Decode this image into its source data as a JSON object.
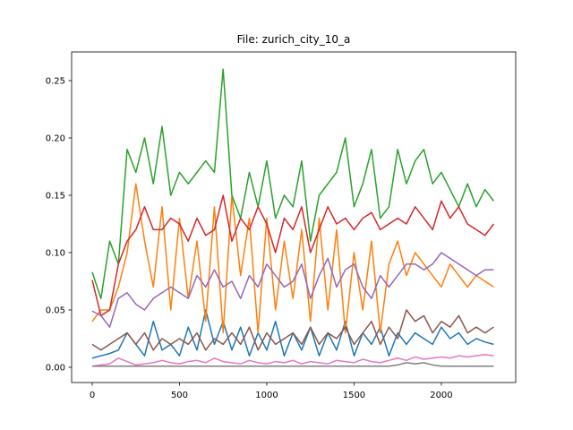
{
  "chart_data": {
    "type": "line",
    "title": "File: zurich_city_10_a",
    "x": [
      0,
      50,
      100,
      150,
      200,
      250,
      300,
      350,
      400,
      450,
      500,
      550,
      600,
      650,
      700,
      750,
      800,
      850,
      900,
      950,
      1000,
      1050,
      1100,
      1150,
      1200,
      1250,
      1300,
      1350,
      1400,
      1450,
      1500,
      1550,
      1600,
      1650,
      1700,
      1750,
      1800,
      1850,
      1900,
      1950,
      2000,
      2050,
      2100,
      2150,
      2200,
      2250,
      2300
    ],
    "xlim": [
      -118,
      2426
    ],
    "xticks": [
      0,
      500,
      1000,
      1500,
      2000
    ],
    "ylim": [
      -0.0133,
      0.275
    ],
    "yticks": [
      {
        "value": 0,
        "label": "0.00"
      },
      {
        "value": 0.05,
        "label": "0.05"
      },
      {
        "value": 0.1,
        "label": "0.10"
      },
      {
        "value": 0.15,
        "label": "0.15"
      },
      {
        "value": 0.2,
        "label": "0.20"
      },
      {
        "value": 0.25,
        "label": "0.25"
      }
    ],
    "series": [
      {
        "color": "#1f77b4",
        "values": [
          0.008,
          0.01,
          0.012,
          0.015,
          0.03,
          0.02,
          0.01,
          0.04,
          0.015,
          0.02,
          0.01,
          0.035,
          0.015,
          0.05,
          0.02,
          0.04,
          0.015,
          0.035,
          0.01,
          0.03,
          0.015,
          0.04,
          0.01,
          0.03,
          0.015,
          0.035,
          0.01,
          0.03,
          0.015,
          0.04,
          0.01,
          0.03,
          0.02,
          0.035,
          0.01,
          0.03,
          0.02,
          0.03,
          0.025,
          0.02,
          0.035,
          0.025,
          0.03,
          0.02,
          0.025,
          0.022,
          0.02
        ]
      },
      {
        "color": "#ff7f0e",
        "values": [
          0.04,
          0.05,
          0.05,
          0.07,
          0.1,
          0.16,
          0.11,
          0.07,
          0.14,
          0.05,
          0.13,
          0.06,
          0.11,
          0.04,
          0.14,
          0.03,
          0.15,
          0.08,
          0.13,
          0.03,
          0.13,
          0.05,
          0.11,
          0.06,
          0.12,
          0.04,
          0.13,
          0.05,
          0.12,
          0.03,
          0.1,
          0.05,
          0.11,
          0.03,
          0.09,
          0.11,
          0.08,
          0.1,
          0.09,
          0.08,
          0.07,
          0.09,
          0.08,
          0.07,
          0.08,
          0.075,
          0.07
        ]
      },
      {
        "color": "#2ca02c",
        "values": [
          0.083,
          0.06,
          0.11,
          0.09,
          0.19,
          0.17,
          0.2,
          0.16,
          0.21,
          0.15,
          0.17,
          0.16,
          0.17,
          0.18,
          0.17,
          0.26,
          0.15,
          0.13,
          0.17,
          0.14,
          0.18,
          0.13,
          0.15,
          0.14,
          0.18,
          0.11,
          0.15,
          0.16,
          0.17,
          0.2,
          0.14,
          0.16,
          0.19,
          0.13,
          0.14,
          0.19,
          0.16,
          0.18,
          0.19,
          0.16,
          0.17,
          0.155,
          0.14,
          0.16,
          0.14,
          0.155,
          0.145
        ]
      },
      {
        "color": "#d62728",
        "values": [
          0.076,
          0.045,
          0.05,
          0.09,
          0.11,
          0.12,
          0.14,
          0.12,
          0.12,
          0.13,
          0.125,
          0.11,
          0.13,
          0.115,
          0.12,
          0.15,
          0.11,
          0.13,
          0.12,
          0.14,
          0.125,
          0.1,
          0.13,
          0.12,
          0.14,
          0.1,
          0.12,
          0.14,
          0.125,
          0.13,
          0.12,
          0.13,
          0.135,
          0.12,
          0.125,
          0.13,
          0.125,
          0.14,
          0.13,
          0.12,
          0.145,
          0.13,
          0.14,
          0.125,
          0.12,
          0.115,
          0.125
        ]
      },
      {
        "color": "#9467bd",
        "values": [
          0.049,
          0.045,
          0.035,
          0.06,
          0.065,
          0.055,
          0.05,
          0.06,
          0.065,
          0.07,
          0.065,
          0.06,
          0.08,
          0.07,
          0.085,
          0.07,
          0.075,
          0.06,
          0.08,
          0.07,
          0.09,
          0.08,
          0.07,
          0.075,
          0.09,
          0.06,
          0.08,
          0.095,
          0.07,
          0.085,
          0.09,
          0.07,
          0.06,
          0.08,
          0.07,
          0.08,
          0.09,
          0.09,
          0.085,
          0.09,
          0.1,
          0.095,
          0.09,
          0.085,
          0.08,
          0.085,
          0.085
        ]
      },
      {
        "color": "#8c564b",
        "values": [
          0.02,
          0.015,
          0.02,
          0.025,
          0.03,
          0.02,
          0.03,
          0.015,
          0.025,
          0.02,
          0.025,
          0.02,
          0.03,
          0.015,
          0.025,
          0.02,
          0.03,
          0.02,
          0.035,
          0.015,
          0.03,
          0.02,
          0.025,
          0.03,
          0.02,
          0.035,
          0.02,
          0.03,
          0.025,
          0.035,
          0.02,
          0.03,
          0.04,
          0.02,
          0.035,
          0.025,
          0.05,
          0.04,
          0.045,
          0.03,
          0.04,
          0.035,
          0.045,
          0.03,
          0.035,
          0.03,
          0.035
        ]
      },
      {
        "color": "#e377c2",
        "values": [
          0.001,
          0.002,
          0.003,
          0.008,
          0.005,
          0.002,
          0.003,
          0.004,
          0.006,
          0.004,
          0.003,
          0.005,
          0.006,
          0.004,
          0.008,
          0.005,
          0.004,
          0.003,
          0.006,
          0.004,
          0.003,
          0.005,
          0.004,
          0.006,
          0.003,
          0.005,
          0.004,
          0.003,
          0.006,
          0.005,
          0.004,
          0.007,
          0.005,
          0.004,
          0.006,
          0.008,
          0.006,
          0.009,
          0.007,
          0.008,
          0.009,
          0.008,
          0.01,
          0.009,
          0.01,
          0.011,
          0.01
        ]
      },
      {
        "color": "#7f7f7f",
        "values": [
          0.001,
          0.001,
          0.001,
          0.001,
          0.001,
          0.001,
          0.001,
          0.001,
          0.001,
          0.001,
          0.001,
          0.001,
          0.001,
          0.001,
          0.001,
          0.001,
          0.001,
          0.001,
          0.001,
          0.001,
          0.001,
          0.001,
          0.001,
          0.001,
          0.001,
          0.001,
          0.001,
          0.001,
          0.001,
          0.001,
          0.001,
          0.001,
          0.001,
          0.001,
          0.001,
          0.002,
          0.004,
          0.003,
          0.004,
          0.002,
          0.001,
          0.001,
          0.001,
          0.001,
          0.001,
          0.001,
          0.001
        ]
      }
    ]
  }
}
